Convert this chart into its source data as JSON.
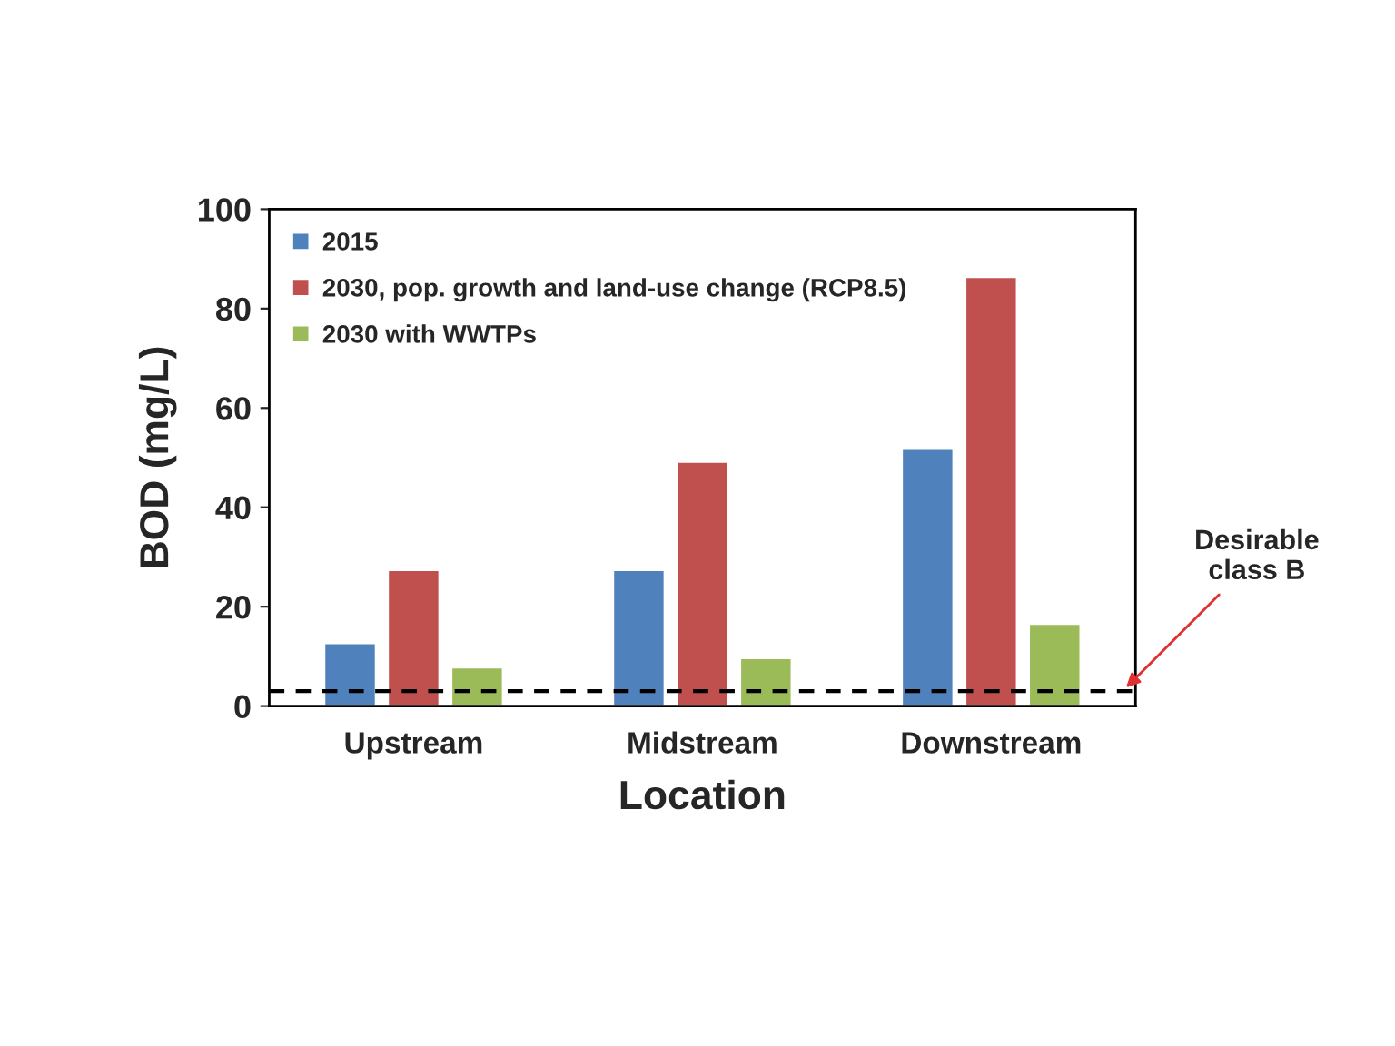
{
  "chart_data": {
    "type": "bar",
    "xlabel": "Location",
    "ylabel": "BOD (mg/L)",
    "categories": [
      "Upstream",
      "Midstream",
      "Downstream"
    ],
    "series": [
      {
        "name": "2015",
        "color": "#4f81bd",
        "values": [
          12.7,
          27.4,
          51.8
        ]
      },
      {
        "name": "2030, pop. growth and land-use change (RCP8.5)",
        "color": "#c0504d",
        "values": [
          27.4,
          49.2,
          86.4
        ]
      },
      {
        "name": "2030 with WWTPs",
        "color": "#9bbb59",
        "values": [
          7.8,
          9.7,
          16.6
        ]
      }
    ],
    "ylim": [
      0,
      100
    ],
    "yticks": [
      0,
      20,
      40,
      60,
      80,
      100
    ],
    "ref_lines": [
      {
        "axis": "y",
        "value": 3,
        "label": "Desirable\nclass B",
        "color": "#000000",
        "line_style": "dashed"
      }
    ],
    "grid": false,
    "legend": "top left"
  }
}
